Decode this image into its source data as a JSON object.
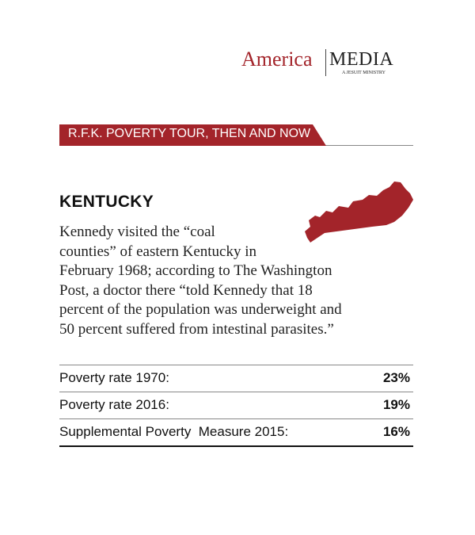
{
  "logo": {
    "name": "America",
    "brand": "MEDIA",
    "tagline": "A JESUIT MINISTRY"
  },
  "banner": "R.F.K. POVERTY TOUR, THEN AND NOW",
  "heading": "KENTUCKY",
  "paragraph": [
    "Kennedy visited the “coal",
    "counties” of eastern Kentucky in",
    "February 1968; according to The Washington",
    "Post, a doctor there “told Kennedy that 18",
    "percent of the population was underweight and",
    "50 percent suffered from intestinal parasites.”"
  ],
  "table": {
    "rows": [
      [
        "Poverty rate 1970:",
        "23%"
      ],
      [
        "Poverty rate 2016:",
        "19%"
      ],
      [
        "Supplemental Poverty  Measure 2015:",
        "16%"
      ]
    ]
  }
}
